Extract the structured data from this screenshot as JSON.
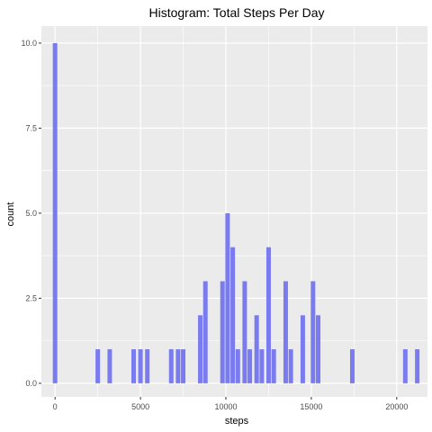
{
  "chart_data": {
    "type": "bar",
    "title": "Histogram: Total Steps Per Day",
    "xlabel": "steps",
    "ylabel": "count",
    "xlim": [
      -800,
      21800
    ],
    "ylim": [
      -0.4,
      10.5
    ],
    "x_ticks": [
      0,
      5000,
      10000,
      15000,
      20000
    ],
    "x_tick_labels": [
      "0",
      "5000",
      "10000",
      "15000",
      "20000"
    ],
    "y_ticks": [
      0,
      2.5,
      5,
      7.5,
      10
    ],
    "y_tick_labels": [
      "0.0",
      "2.5",
      "5.0",
      "7.5",
      "10.0"
    ],
    "grid": true,
    "bar_color": "#7b7bf0",
    "panel_color": "#ebebeb",
    "grid_color": "#ffffff",
    "x": [
      0,
      2500,
      3200,
      4600,
      5000,
      5400,
      6800,
      7200,
      7500,
      8500,
      8800,
      9800,
      10100,
      10400,
      10700,
      11100,
      11400,
      11800,
      12100,
      12500,
      12800,
      13500,
      13800,
      14500,
      15100,
      15400,
      17400,
      20500,
      21200
    ],
    "values": [
      10,
      1,
      1,
      1,
      1,
      1,
      1,
      1,
      1,
      2,
      3,
      3,
      5,
      4,
      1,
      3,
      1,
      2,
      1,
      4,
      1,
      3,
      1,
      2,
      3,
      2,
      1,
      1,
      1
    ]
  }
}
